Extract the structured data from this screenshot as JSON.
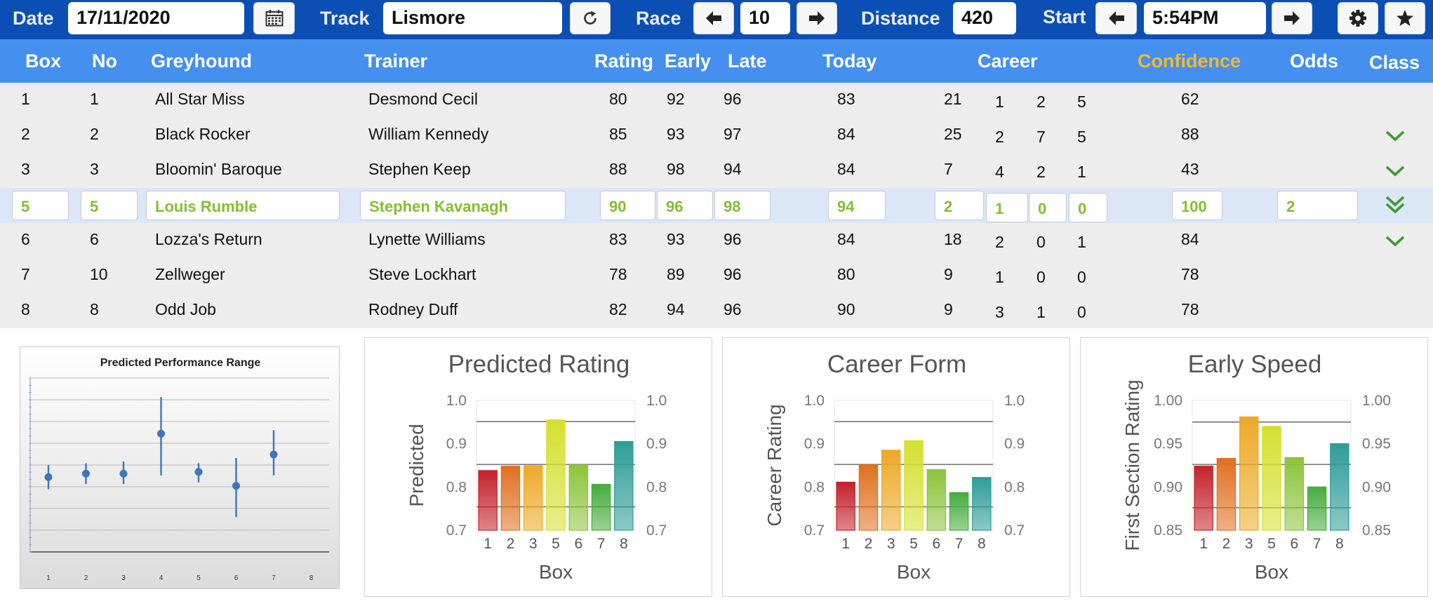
{
  "toolbar": {
    "date_label": "Date",
    "date_value": "17/11/2020",
    "track_label": "Track",
    "track_value": "Lismore",
    "race_label": "Race",
    "race_value": "10",
    "distance_label": "Distance",
    "distance_value": "420",
    "start_label": "Start",
    "start_value": "5:54PM",
    "icons": [
      "calendar-icon",
      "refresh-icon",
      "arrow-left-icon",
      "arrow-right-icon",
      "gear-icon",
      "star-icon"
    ]
  },
  "table": {
    "headers": {
      "box": "Box",
      "no": "No",
      "greyhound": "Greyhound",
      "trainer": "Trainer",
      "rating": "Rating",
      "early": "Early",
      "late": "Late",
      "today": "Today",
      "career": "Career",
      "confidence": "Confidence",
      "odds": "Odds",
      "class": "Class"
    },
    "confidence_color": "#f5b731",
    "rows": [
      {
        "box": "1",
        "no": "1",
        "greyhound": "All Star Miss",
        "trainer": "Desmond Cecil",
        "rating": "80",
        "early": "92",
        "late": "96",
        "today": "83",
        "c1": "21",
        "c2": "1",
        "c3": "2",
        "c4": "5",
        "confidence": "62",
        "odds": "",
        "class": "none"
      },
      {
        "box": "2",
        "no": "2",
        "greyhound": "Black Rocker",
        "trainer": "William Kennedy",
        "rating": "85",
        "early": "93",
        "late": "97",
        "today": "84",
        "c1": "25",
        "c2": "2",
        "c3": "7",
        "c4": "5",
        "confidence": "88",
        "odds": "",
        "class": "check"
      },
      {
        "box": "3",
        "no": "3",
        "greyhound": "Bloomin' Baroque",
        "trainer": "Stephen Keep",
        "rating": "88",
        "early": "98",
        "late": "94",
        "today": "84",
        "c1": "7",
        "c2": "4",
        "c3": "2",
        "c4": "1",
        "confidence": "43",
        "odds": "",
        "class": "check"
      },
      {
        "box": "5",
        "no": "5",
        "greyhound": "Louis Rumble",
        "trainer": "Stephen Kavanagh",
        "rating": "90",
        "early": "96",
        "late": "98",
        "today": "94",
        "c1": "2",
        "c2": "1",
        "c3": "0",
        "c4": "0",
        "confidence": "100",
        "odds": "2",
        "class": "double-check",
        "selected": true
      },
      {
        "box": "6",
        "no": "6",
        "greyhound": "Lozza's Return",
        "trainer": "Lynette Williams",
        "rating": "83",
        "early": "93",
        "late": "96",
        "today": "84",
        "c1": "18",
        "c2": "2",
        "c3": "0",
        "c4": "1",
        "confidence": "84",
        "odds": "",
        "class": "check"
      },
      {
        "box": "7",
        "no": "10",
        "greyhound": "Zellweger",
        "trainer": "Steve Lockhart",
        "rating": "78",
        "early": "89",
        "late": "96",
        "today": "80",
        "c1": "9",
        "c2": "1",
        "c3": "0",
        "c4": "0",
        "confidence": "78",
        "odds": "",
        "class": "none"
      },
      {
        "box": "8",
        "no": "8",
        "greyhound": "Odd Job",
        "trainer": "Rodney Duff",
        "rating": "82",
        "early": "94",
        "late": "96",
        "today": "90",
        "c1": "9",
        "c2": "3",
        "c3": "1",
        "c4": "0",
        "confidence": "78",
        "odds": "",
        "class": "none"
      }
    ]
  },
  "chart_data": [
    {
      "type": "scatter",
      "title": "Predicted Performance Range",
      "categories": [
        "1",
        "2",
        "3",
        "4",
        "5",
        "6",
        "7",
        "8"
      ],
      "y_unit": "relative",
      "ylim": [
        0,
        1
      ],
      "points": [
        {
          "x": "1",
          "y": 0.43,
          "low": 0.36,
          "high": 0.5
        },
        {
          "x": "2",
          "y": 0.45,
          "low": 0.39,
          "high": 0.51
        },
        {
          "x": "3",
          "y": 0.45,
          "low": 0.39,
          "high": 0.52
        },
        {
          "x": "4",
          "y": 0.68,
          "low": 0.44,
          "high": 0.89
        },
        {
          "x": "5",
          "y": 0.46,
          "low": 0.4,
          "high": 0.51
        },
        {
          "x": "6",
          "y": 0.38,
          "low": 0.2,
          "high": 0.54
        },
        {
          "x": "7",
          "y": 0.56,
          "low": 0.44,
          "high": 0.7
        }
      ],
      "color": "#3b76bd",
      "grid": true
    },
    {
      "type": "bar",
      "title": "Predicted Rating",
      "xlabel": "Box",
      "ylabel": "Predicted",
      "categories": [
        "1",
        "2",
        "3",
        "5",
        "6",
        "7",
        "8"
      ],
      "values": [
        0.838,
        0.848,
        0.849,
        0.955,
        0.851,
        0.806,
        0.905
      ],
      "ylim": [
        0.7,
        1.0
      ],
      "yticks": [
        "0.7",
        "0.8",
        "0.9",
        "1.0"
      ],
      "ref_lines": [
        0.754,
        0.852,
        0.951
      ],
      "grid": true
    },
    {
      "type": "bar",
      "title": "Career Form",
      "xlabel": "Box",
      "ylabel": "Career Rating",
      "categories": [
        "1",
        "2",
        "3",
        "5",
        "6",
        "7",
        "8"
      ],
      "values": [
        0.811,
        0.851,
        0.885,
        0.907,
        0.84,
        0.787,
        0.822
      ],
      "ylim": [
        0.7,
        1.0
      ],
      "yticks": [
        "0.7",
        "0.8",
        "0.9",
        "1.0"
      ],
      "ref_lines": [
        0.754,
        0.852,
        0.951
      ],
      "grid": true
    },
    {
      "type": "bar",
      "title": "Early Speed",
      "xlabel": "Box",
      "ylabel": "First Section Rating",
      "categories": [
        "1",
        "2",
        "3",
        "5",
        "6",
        "7",
        "8"
      ],
      "values": [
        0.924,
        0.933,
        0.981,
        0.97,
        0.934,
        0.9,
        0.95
      ],
      "ylim": [
        0.85,
        1.0
      ],
      "yticks": [
        "0.85",
        "0.90",
        "0.95",
        "1.00"
      ],
      "ref_lines": [
        0.876,
        0.926,
        0.975
      ],
      "grid": true
    }
  ],
  "bar_colors": [
    "#c4222a",
    "#e0701f",
    "#eda926",
    "#d4e02e",
    "#8cc43a",
    "#45ad3e",
    "#2e9c98"
  ]
}
